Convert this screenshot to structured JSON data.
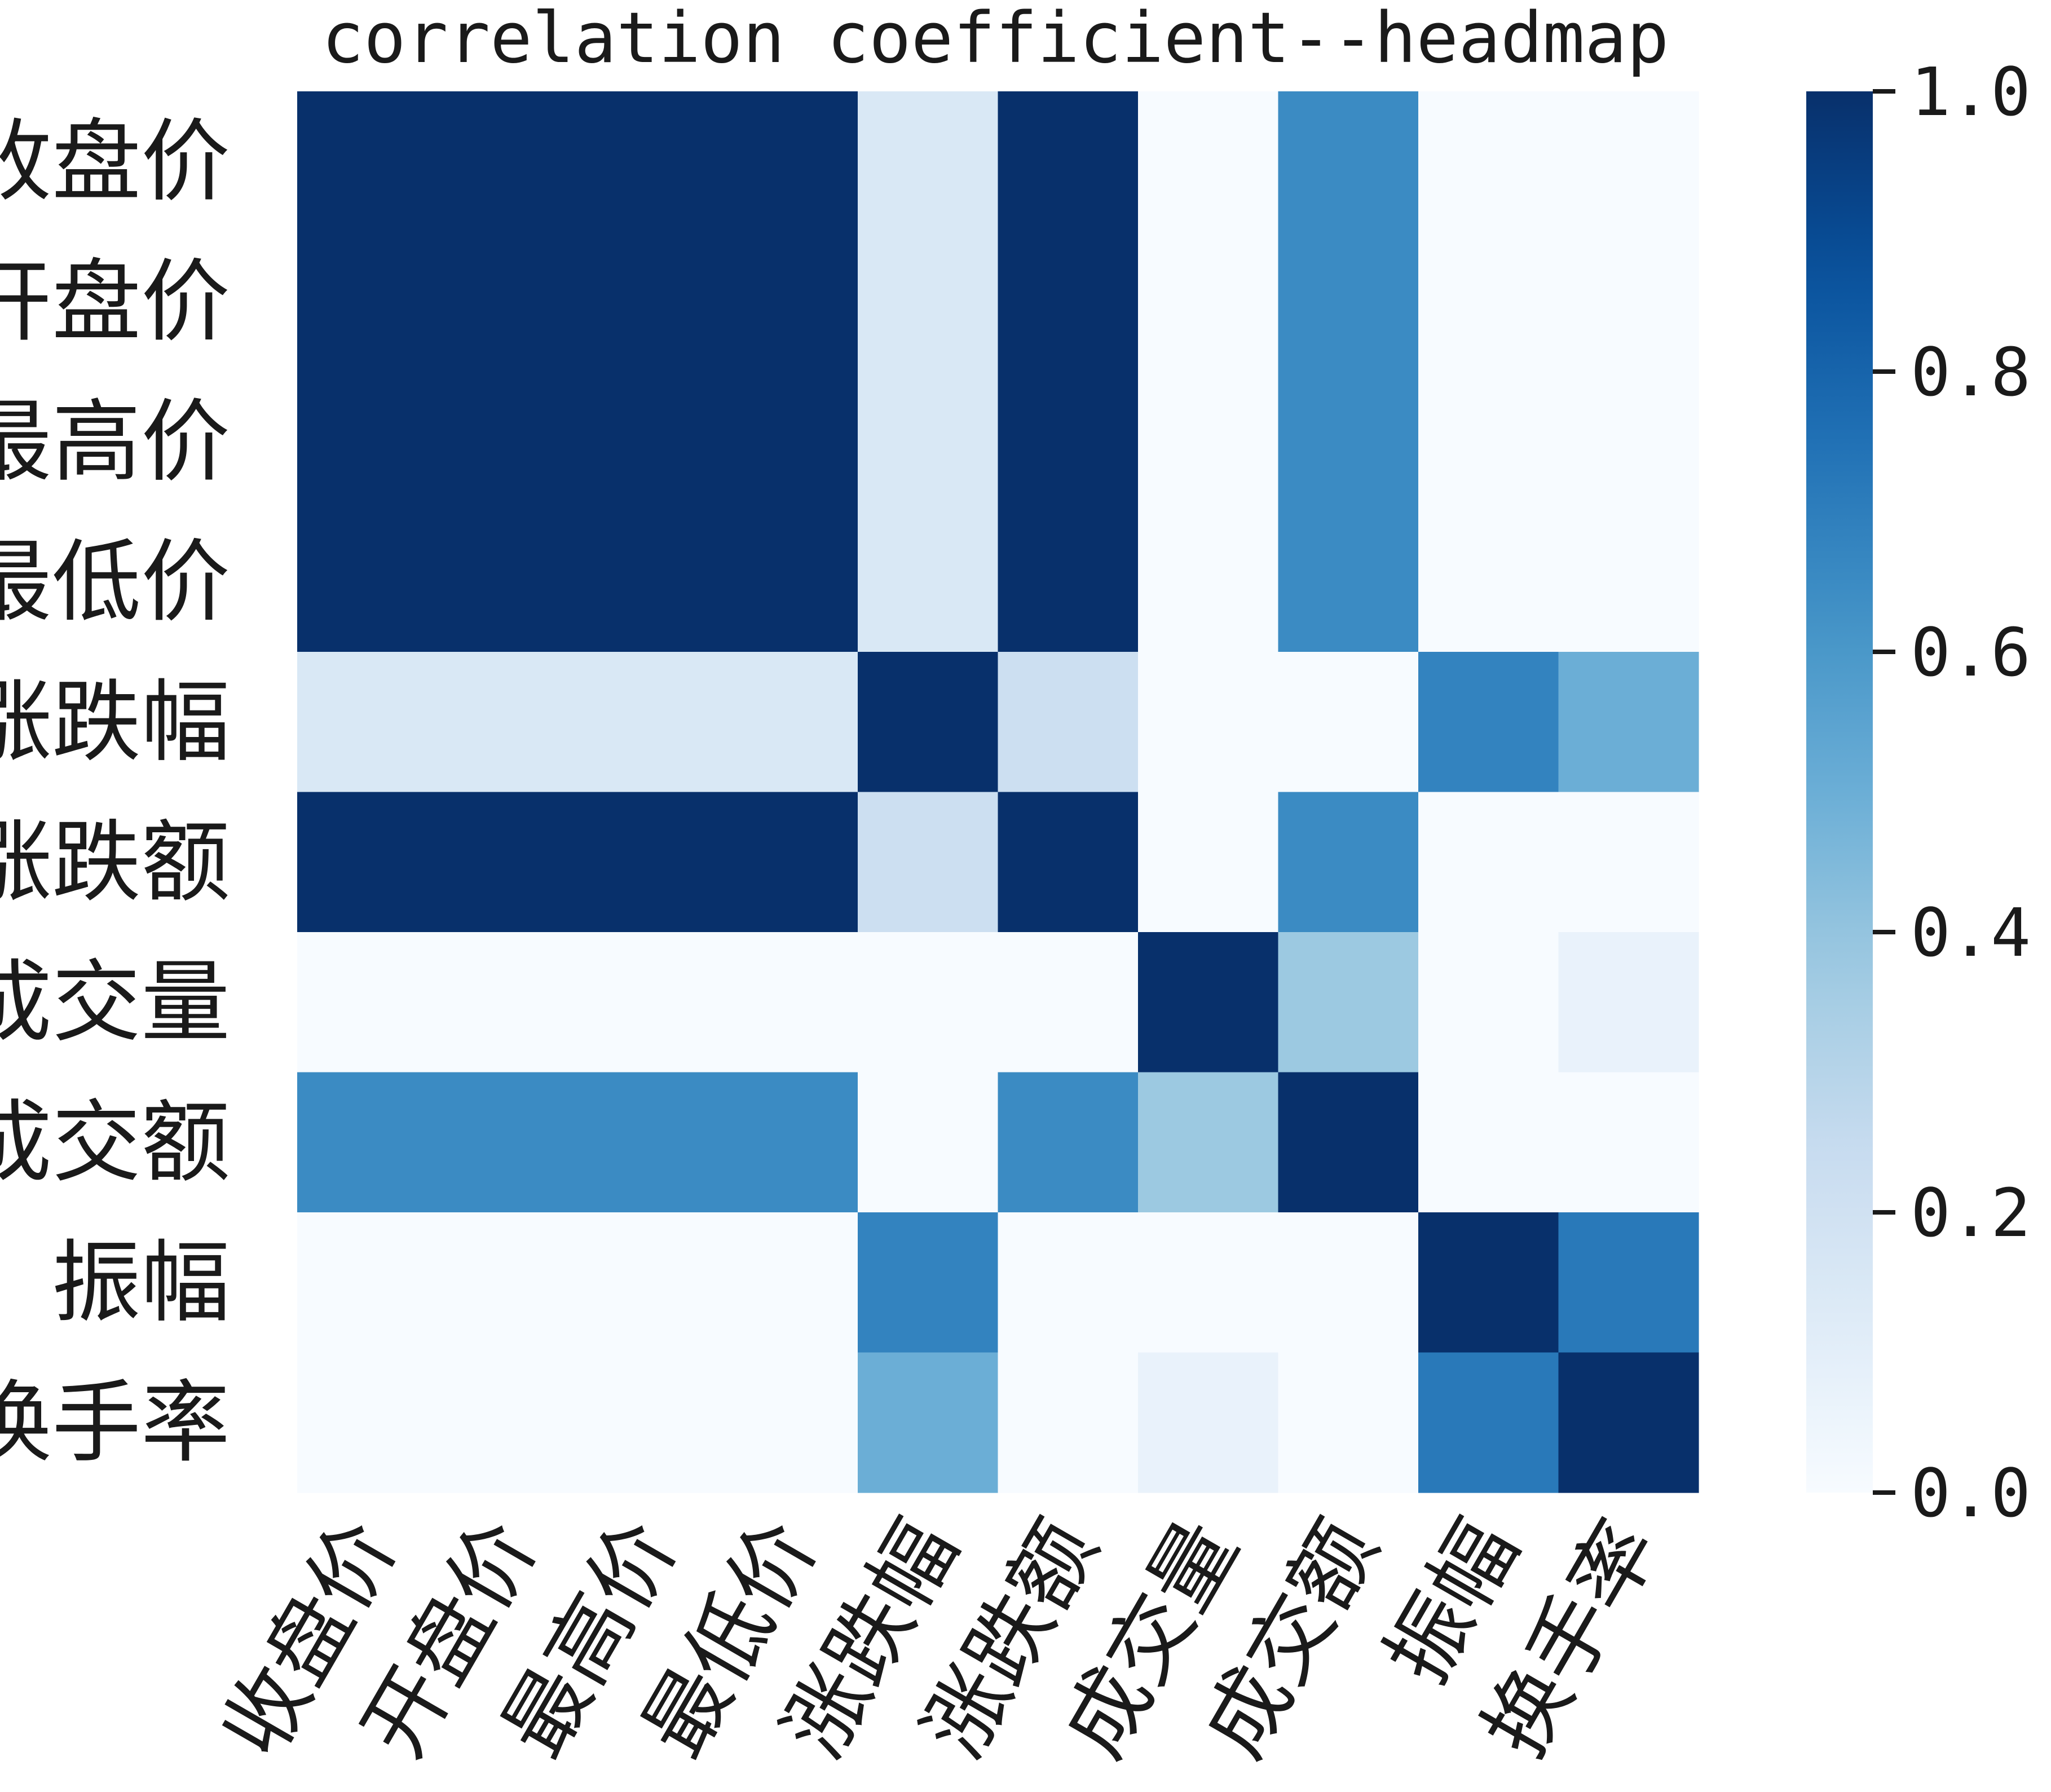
{
  "chart_data": {
    "type": "heatmap",
    "title": "correlation coefficient--headmap",
    "rows": [
      "收盘价",
      "开盘价",
      "最高价",
      "最低价",
      "涨跌幅",
      "涨跌额",
      "成交量",
      "成交额",
      "振幅",
      "换手率"
    ],
    "cols": [
      "收盘价",
      "开盘价",
      "最高价",
      "最低价",
      "涨跌幅",
      "涨跌额",
      "成交量",
      "成交额",
      "振幅",
      "换手率"
    ],
    "values": [
      [
        1.0,
        1.0,
        1.0,
        1.0,
        0.15,
        1.0,
        0.0,
        0.65,
        0.0,
        0.0
      ],
      [
        1.0,
        1.0,
        1.0,
        1.0,
        0.15,
        1.0,
        0.0,
        0.65,
        0.0,
        0.0
      ],
      [
        1.0,
        1.0,
        1.0,
        1.0,
        0.15,
        1.0,
        0.0,
        0.65,
        0.0,
        0.0
      ],
      [
        1.0,
        1.0,
        1.0,
        1.0,
        0.15,
        1.0,
        0.0,
        0.65,
        0.0,
        0.0
      ],
      [
        0.15,
        0.15,
        0.15,
        0.15,
        1.0,
        0.22,
        0.0,
        0.0,
        0.68,
        0.5
      ],
      [
        1.0,
        1.0,
        1.0,
        1.0,
        0.22,
        1.0,
        0.0,
        0.65,
        0.0,
        0.0
      ],
      [
        0.0,
        0.0,
        0.0,
        0.0,
        0.0,
        0.0,
        1.0,
        0.38,
        0.0,
        0.07
      ],
      [
        0.65,
        0.65,
        0.65,
        0.65,
        0.0,
        0.65,
        0.38,
        1.0,
        0.0,
        0.0
      ],
      [
        0.0,
        0.0,
        0.0,
        0.0,
        0.68,
        0.0,
        0.0,
        0.0,
        1.0,
        0.72
      ],
      [
        0.0,
        0.0,
        0.0,
        0.0,
        0.5,
        0.0,
        0.07,
        0.0,
        0.72,
        1.0
      ]
    ],
    "colormap": "Blues",
    "colorbar": {
      "range": [
        0.0,
        1.0
      ],
      "ticks": [
        0.0,
        0.2,
        0.4,
        0.6,
        0.8,
        1.0
      ],
      "tick_labels": [
        "0.0",
        "0.2",
        "0.4",
        "0.6",
        "0.8",
        "1.0"
      ]
    },
    "colors": {
      "low": "#f7fbff",
      "high": "#08306b"
    },
    "xlabel": "",
    "ylabel": ""
  }
}
